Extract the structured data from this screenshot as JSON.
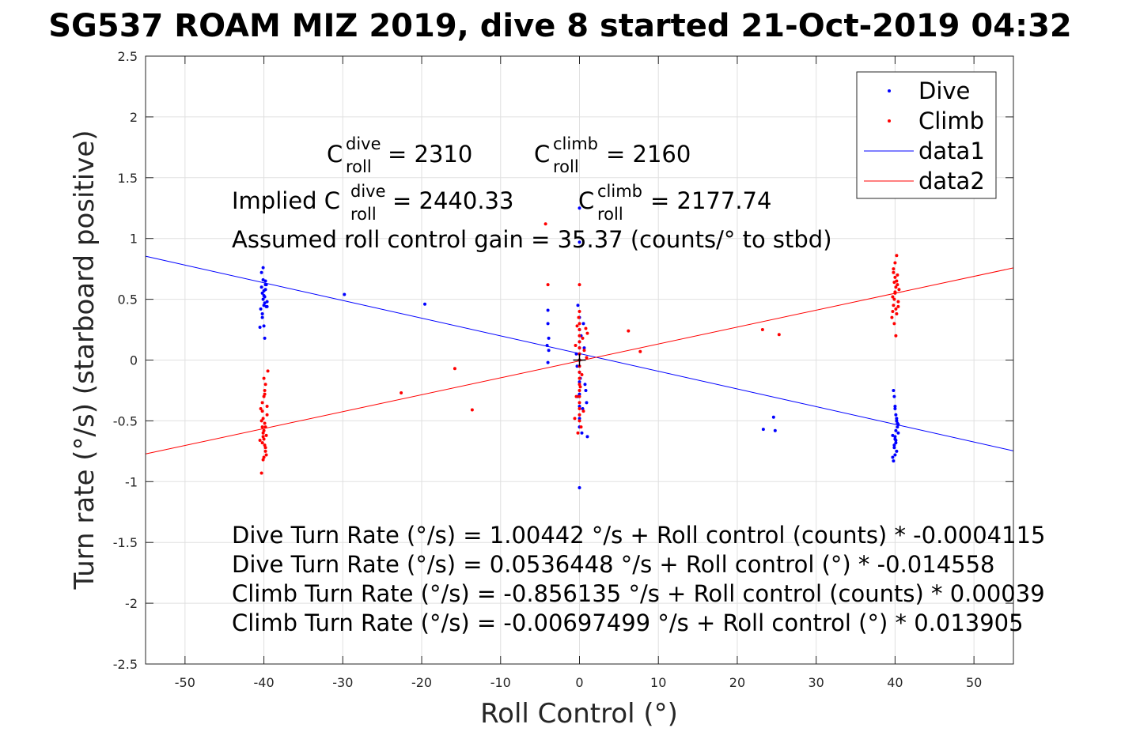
{
  "chart_data": {
    "type": "scatter",
    "title": "SG537 ROAM MIZ 2019, dive 8 started 21-Oct-2019 04:32",
    "xlabel": "Roll Control (°)",
    "ylabel": "Turn rate (°/s) (starboard positive)",
    "xlim": [
      -55,
      55
    ],
    "ylim": [
      -2.5,
      2.5
    ],
    "xticks": [
      -50,
      -40,
      -30,
      -20,
      -10,
      0,
      10,
      20,
      30,
      40,
      50
    ],
    "yticks": [
      -2.5,
      -2,
      -1.5,
      -1,
      -0.5,
      0,
      0.5,
      1,
      1.5,
      2,
      2.5
    ],
    "xtick_labels": [
      "-50",
      "-40",
      "-30",
      "-20",
      "-10",
      "0",
      "10",
      "20",
      "30",
      "40",
      "50"
    ],
    "ytick_labels": [
      "-2.5",
      "-2",
      "-1.5",
      "-1",
      "-0.5",
      "0",
      "0.5",
      "1",
      "1.5",
      "2",
      "2.5"
    ],
    "grid": true,
    "legend_position": "top-right",
    "legend": [
      "Dive",
      "Climb",
      "data1",
      "data2"
    ],
    "colors": {
      "dive": "#0000ff",
      "climb": "#ff0000",
      "axis": "#262626",
      "grid": "#e0e0e0"
    },
    "series": [
      {
        "name": "Dive",
        "kind": "points",
        "color": "#0000ff",
        "x": [
          -40.3,
          -40.2,
          -40.1,
          -40.0,
          -39.9,
          -39.8,
          -39.7,
          -39.6,
          -40.4,
          -40.2,
          -40.0,
          -39.9,
          -39.8,
          -40.1,
          -40.3,
          -39.7,
          -40.0,
          -39.9,
          -40.2,
          -39.8,
          -40.0,
          -40.1,
          -39.6,
          -40.5,
          -29.8,
          -19.6,
          -4.0,
          -4.0,
          -3.9,
          -4.1,
          -3.9,
          -4.0,
          0.0,
          0.0,
          0.0,
          0.0,
          0.0,
          0.0,
          0.0,
          0.0,
          0.0,
          0.0,
          0.0,
          0.0,
          0.0,
          0.0,
          0.0,
          -0.3,
          0.2,
          0.4,
          -0.2,
          0.6,
          0.8,
          -0.4,
          0.3,
          0.0,
          -0.2,
          0.1,
          0.5,
          0.9,
          1.0,
          0.7,
          23.3,
          24.6,
          24.8,
          39.8,
          39.9,
          40.0,
          40.1,
          40.2,
          40.3,
          40.4,
          39.7,
          40.0,
          40.1,
          39.9,
          40.2,
          40.0,
          39.8,
          40.3,
          40.1,
          40.0,
          39.9,
          40.2,
          40.0,
          40.1,
          39.7,
          40.4
        ],
        "y": [
          0.6,
          0.55,
          0.5,
          0.45,
          0.52,
          0.58,
          0.62,
          0.48,
          0.42,
          0.35,
          0.28,
          0.18,
          0.65,
          0.66,
          0.72,
          0.44,
          0.53,
          0.47,
          0.38,
          0.62,
          0.57,
          0.76,
          0.44,
          0.27,
          0.54,
          0.46,
          0.41,
          0.3,
          0.18,
          0.12,
          0.08,
          -0.02,
          1.25,
          0.97,
          0.35,
          0.25,
          0.15,
          0.1,
          0.05,
          0.0,
          -0.05,
          -0.1,
          -0.18,
          -0.28,
          -0.38,
          -0.48,
          -0.55,
          -0.05,
          0.2,
          -0.4,
          -0.3,
          0.1,
          -0.25,
          0.05,
          -0.6,
          -1.05,
          0.45,
          -0.15,
          0.3,
          -0.35,
          -0.63,
          -0.2,
          -0.57,
          -0.47,
          -0.58,
          -0.25,
          -0.3,
          -0.4,
          -0.45,
          -0.5,
          -0.55,
          -0.6,
          -0.62,
          -0.65,
          -0.68,
          -0.72,
          -0.75,
          -0.78,
          -0.83,
          -0.52,
          -0.58,
          -0.63,
          -0.7,
          -0.48,
          -0.38,
          -0.66,
          -0.8,
          -0.53
        ]
      },
      {
        "name": "Climb",
        "kind": "points",
        "color": "#ff0000",
        "x": [
          -40.3,
          -40.2,
          -40.1,
          -40.0,
          -39.9,
          -39.8,
          -39.7,
          -39.6,
          -40.4,
          -40.2,
          -40.0,
          -39.9,
          -39.8,
          -40.1,
          -40.3,
          -39.7,
          -40.0,
          -39.9,
          -40.2,
          -39.8,
          -40.0,
          -40.1,
          -39.6,
          -40.5,
          -39.9,
          -40.2,
          -40.0,
          -39.5,
          -39.8,
          -40.1,
          -22.6,
          -15.8,
          -13.6,
          -4.0,
          -4.3,
          0.0,
          0.0,
          0.0,
          0.0,
          0.0,
          0.0,
          0.0,
          0.0,
          0.0,
          0.0,
          0.0,
          0.0,
          0.0,
          0.0,
          0.0,
          0.0,
          0.0,
          0.0,
          0.0,
          -0.3,
          0.2,
          0.4,
          -0.2,
          0.6,
          0.8,
          -0.4,
          0.3,
          -0.5,
          0.5,
          1.0,
          -0.6,
          0.9,
          -0.1,
          0.1,
          6.2,
          7.7,
          23.2,
          25.3,
          39.6,
          39.7,
          39.8,
          39.9,
          40.0,
          40.1,
          40.2,
          40.3,
          40.4,
          40.5,
          39.8,
          40.0,
          40.2,
          39.9,
          40.1,
          40.3,
          39.7,
          40.0,
          40.2,
          40.4,
          39.9,
          40.1,
          40.0,
          39.8
        ],
        "y": [
          -0.5,
          -0.55,
          -0.6,
          -0.65,
          -0.7,
          -0.75,
          -0.78,
          -0.45,
          -0.4,
          -0.35,
          -0.3,
          -0.25,
          -0.2,
          -0.82,
          -0.93,
          -0.62,
          -0.58,
          -0.52,
          -0.68,
          -0.72,
          -0.8,
          -0.48,
          -0.38,
          -0.66,
          -0.28,
          -0.42,
          -0.15,
          -0.09,
          -0.55,
          -0.63,
          -0.27,
          -0.07,
          -0.41,
          0.62,
          1.12,
          0.62,
          0.4,
          0.3,
          0.25,
          0.2,
          0.15,
          0.1,
          0.05,
          0.0,
          -0.05,
          -0.1,
          -0.15,
          -0.2,
          -0.25,
          -0.3,
          -0.35,
          -0.4,
          -0.45,
          -0.5,
          0.28,
          -0.55,
          0.18,
          -0.6,
          0.08,
          0.26,
          -0.3,
          -0.12,
          0.12,
          -0.42,
          0.22,
          -0.48,
          0.02,
          0.35,
          -0.22,
          0.24,
          0.07,
          0.25,
          0.21,
          0.35,
          0.4,
          0.45,
          0.5,
          0.55,
          0.6,
          0.65,
          0.7,
          0.48,
          0.58,
          0.75,
          0.8,
          0.86,
          0.3,
          0.42,
          0.62,
          0.52,
          0.68,
          0.38,
          0.44,
          0.64,
          0.2,
          0.56,
          0.72
        ],
        "marker_y": null
      },
      {
        "name": "data1",
        "kind": "line",
        "color": "#0000ff",
        "x": [
          -55,
          55
        ],
        "y": [
          0.854,
          -0.747
        ]
      },
      {
        "name": "data2",
        "kind": "line",
        "color": "#ff0000",
        "x": [
          -55,
          55
        ],
        "y": [
          -0.772,
          0.758
        ]
      }
    ],
    "center_marker": {
      "x": 0,
      "y": 0,
      "symbol": "+"
    },
    "annotations": {
      "c_dive_base": "C",
      "c_dive_sup": "dive",
      "c_dive_sub": "roll",
      "c_dive_val": " = 2310",
      "c_climb_base": "C",
      "c_climb_sup": "climb",
      "c_climb_sub": "roll",
      "c_climb_val": " = 2160",
      "implied_prefix": "Implied C",
      "implied_dive_sup": "dive",
      "implied_dive_sub": "roll",
      "implied_dive_val": " = 2440.33",
      "implied_climb_base": "C",
      "implied_climb_sup": "climb",
      "implied_climb_sub": "roll",
      "implied_climb_val": " = 2177.74",
      "gain": "Assumed roll control gain = 35.37 (counts/° to stbd)",
      "eq1": "Dive Turn Rate (°/s) = 1.00442 °/s + Roll control (counts) * -0.0004115",
      "eq2": "Dive Turn Rate (°/s) = 0.0536448 °/s + Roll control (°) * -0.014558",
      "eq3": "Climb Turn Rate (°/s) = -0.856135 °/s + Roll control (counts) * 0.00039",
      "eq4": "Climb Turn Rate (°/s) = -0.00697499 °/s + Roll control (°) * 0.013905"
    }
  }
}
